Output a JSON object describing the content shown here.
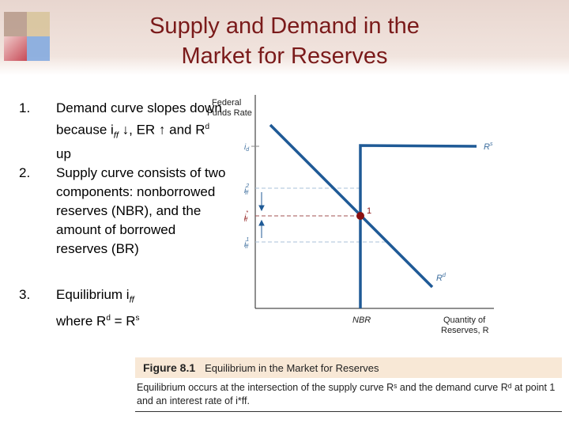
{
  "slide": {
    "title_line1": "Supply and Demand in the",
    "title_line2": "Market for Reserves"
  },
  "points": [
    {
      "num": "1.",
      "text": "Demand curve slopes down because i",
      "sub": "ff",
      "tail": " ↓, ER ↑ and R",
      "sup": "d",
      "end": " up"
    },
    {
      "num": "2.",
      "text": "Supply curve consists of two components: nonborrowed reserves (NBR), and the amount of borrowed reserves (BR)"
    },
    {
      "num": "3.",
      "text_a": "Equilibrium i",
      "sub": "ff",
      "text_b": "where R",
      "sup1": "d",
      "text_c": " = R",
      "sup2": "s"
    }
  ],
  "diagram": {
    "y_axis_label_1": "Federal",
    "y_axis_label_2": "Funds Rate",
    "x_axis_label_1": "Quantity of",
    "x_axis_label_2": "Reserves, R",
    "x_tick": "NBR",
    "y_ticks": [
      "i",
      "i",
      "i",
      "i"
    ],
    "y_tick_subs": [
      "d",
      "ff",
      "ff",
      "ff"
    ],
    "y_tick_sups": [
      "",
      "2",
      "*",
      "1"
    ],
    "supply_label": "R",
    "supply_sup": "s",
    "demand_label": "R",
    "demand_sup": "d",
    "equilibrium_label": "1",
    "colors": {
      "curve": "#1f5a96",
      "equilibrium": "#8b1010",
      "guide": "#a8c0d8"
    }
  },
  "caption": {
    "figure": "Figure 8.1",
    "heading": "Equilibrium in the Market for Reserves",
    "body": "Equilibrium occurs at the intersection of the supply curve Rˢ and the demand curve Rᵈ at point 1 and an interest rate of i*ff."
  }
}
